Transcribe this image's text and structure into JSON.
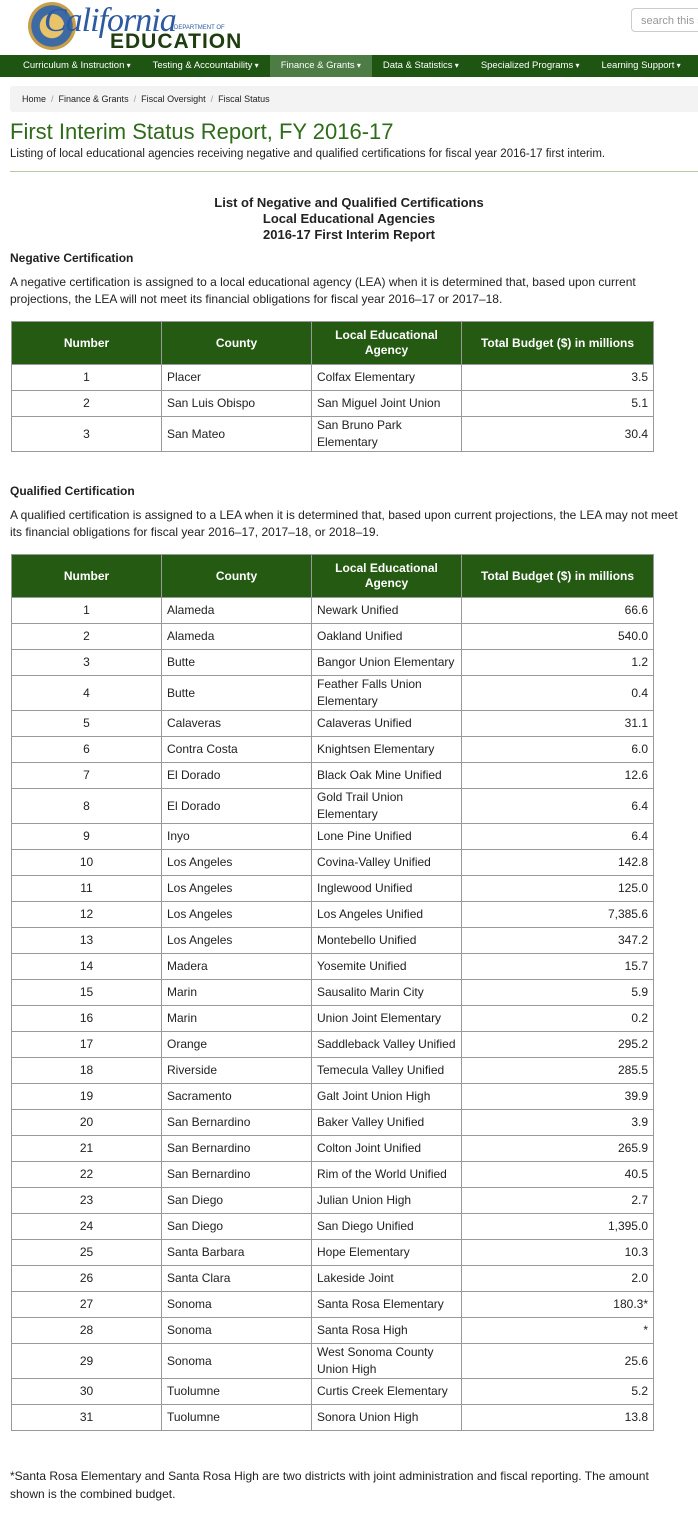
{
  "header": {
    "logo_main": "California",
    "logo_dept": "DEPARTMENT OF",
    "logo_edu": "EDUCATION",
    "search_placeholder": "search this s"
  },
  "nav": [
    "Curriculum & Instruction",
    "Testing & Accountability",
    "Finance & Grants",
    "Data & Statistics",
    "Specialized Programs",
    "Learning Support"
  ],
  "breadcrumb": [
    "Home",
    "Finance & Grants",
    "Fiscal Oversight",
    "Fiscal Status"
  ],
  "page": {
    "title": "First Interim Status Report, FY 2016-17",
    "subtitle": "Listing of local educational agencies receiving negative and qualified certifications for fiscal year 2016-17 first interim."
  },
  "report_heading": [
    "List of Negative and Qualified Certifications",
    "Local Educational Agencies",
    "2016-17 First Interim Report"
  ],
  "sections": [
    {
      "heading": "Negative Certification",
      "description": "A negative certification is assigned to a local educational agency (LEA) when it is determined that, based upon current projections, the LEA will not meet its financial obligations for fiscal year 2016–17 or 2017–18.",
      "table": {
        "headers": [
          "Number",
          "County",
          "Local Educational Agency",
          "Total Budget ($) in millions"
        ],
        "rows": [
          [
            "1",
            "Placer",
            "Colfax Elementary",
            "3.5"
          ],
          [
            "2",
            "San Luis Obispo",
            "San Miguel Joint Union",
            "5.1"
          ],
          [
            "3",
            "San Mateo",
            "San Bruno Park Elementary",
            "30.4"
          ]
        ]
      }
    },
    {
      "heading": "Qualified Certification",
      "description": "A qualified certification is assigned to a LEA when it is determined that, based upon current projections, the LEA may not meet its financial obligations for fiscal year 2016–17, 2017–18, or 2018–19.",
      "table": {
        "headers": [
          "Number",
          "County",
          "Local Educational Agency",
          "Total Budget ($) in millions"
        ],
        "rows": [
          [
            "1",
            "Alameda",
            "Newark Unified",
            "66.6"
          ],
          [
            "2",
            "Alameda",
            "Oakland Unified",
            "540.0"
          ],
          [
            "3",
            "Butte",
            "Bangor Union Elementary",
            "1.2"
          ],
          [
            "4",
            "Butte",
            "Feather Falls Union Elementary",
            "0.4"
          ],
          [
            "5",
            "Calaveras",
            "Calaveras Unified",
            "31.1"
          ],
          [
            "6",
            "Contra Costa",
            "Knightsen Elementary",
            "6.0"
          ],
          [
            "7",
            "El Dorado",
            "Black Oak Mine Unified",
            "12.6"
          ],
          [
            "8",
            "El Dorado",
            "Gold Trail Union Elementary",
            "6.4"
          ],
          [
            "9",
            "Inyo",
            "Lone Pine Unified",
            "6.4"
          ],
          [
            "10",
            "Los Angeles",
            "Covina-Valley Unified",
            "142.8"
          ],
          [
            "11",
            "Los Angeles",
            "Inglewood Unified",
            "125.0"
          ],
          [
            "12",
            "Los Angeles",
            "Los Angeles Unified",
            "7,385.6"
          ],
          [
            "13",
            "Los Angeles",
            "Montebello Unified",
            "347.2"
          ],
          [
            "14",
            "Madera",
            "Yosemite Unified",
            "15.7"
          ],
          [
            "15",
            "Marin",
            "Sausalito Marin City",
            "5.9"
          ],
          [
            "16",
            "Marin",
            "Union Joint Elementary",
            "0.2"
          ],
          [
            "17",
            "Orange",
            "Saddleback Valley Unified",
            "295.2"
          ],
          [
            "18",
            "Riverside",
            "Temecula Valley Unified",
            "285.5"
          ],
          [
            "19",
            "Sacramento",
            "Galt Joint Union High",
            "39.9"
          ],
          [
            "20",
            "San Bernardino",
            "Baker Valley Unified",
            "3.9"
          ],
          [
            "21",
            "San Bernardino",
            "Colton Joint Unified",
            "265.9"
          ],
          [
            "22",
            "San Bernardino",
            "Rim of the World Unified",
            "40.5"
          ],
          [
            "23",
            "San Diego",
            "Julian Union High",
            "2.7"
          ],
          [
            "24",
            "San Diego",
            "San Diego Unified",
            "1,395.0"
          ],
          [
            "25",
            "Santa Barbara",
            "Hope Elementary",
            "10.3"
          ],
          [
            "26",
            "Santa Clara",
            "Lakeside Joint",
            "2.0"
          ],
          [
            "27",
            "Sonoma",
            "Santa Rosa Elementary",
            "180.3*"
          ],
          [
            "28",
            "Sonoma",
            "Santa Rosa High",
            "*"
          ],
          [
            "29",
            "Sonoma",
            "West Sonoma County Union High",
            "25.6"
          ],
          [
            "30",
            "Tuolumne",
            "Curtis Creek Elementary",
            "5.2"
          ],
          [
            "31",
            "Tuolumne",
            "Sonora Union High",
            "13.8"
          ]
        ]
      }
    }
  ],
  "footnote": "*Santa Rosa Elementary and Santa Rosa High are two districts with joint administration and fiscal reporting. The amount shown is the combined budget."
}
